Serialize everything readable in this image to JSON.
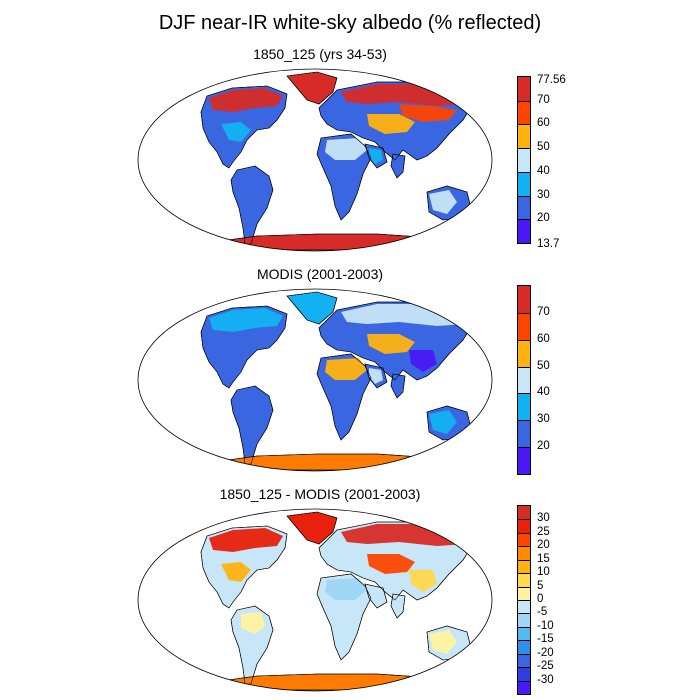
{
  "title": "DJF near-IR white-sky albedo (% reflected)",
  "panels": [
    {
      "title": "1850_125 (yrs 34-53)",
      "scale": "albedo",
      "ends": [
        "77.56",
        "13.7"
      ],
      "labels": [
        "70",
        "60",
        "50",
        "40",
        "30",
        "20"
      ],
      "colors": [
        "#d72b27",
        "#fe4500",
        "#ffb30f",
        "#c7e6f7",
        "#12b2f2",
        "#3a66e2",
        "#4b18f6"
      ],
      "land": "#3a66e2",
      "greenland": "#d72b27",
      "antarctica": "#d72b27",
      "patches": [
        {
          "c": "#d72b27",
          "at": "north-america-north"
        },
        {
          "c": "#d72b27",
          "at": "eurasia-north"
        },
        {
          "c": "#fe4500",
          "at": "siberia"
        },
        {
          "c": "#ffb30f",
          "at": "central-asia"
        },
        {
          "c": "#c7e6f7",
          "at": "sahara"
        },
        {
          "c": "#12b2f2",
          "at": "arabia"
        },
        {
          "c": "#c7e6f7",
          "at": "australia-west"
        },
        {
          "c": "#12b2f2",
          "at": "north-america-central"
        }
      ]
    },
    {
      "title": "MODIS (2001-2003)",
      "scale": "albedo",
      "ends": [
        "",
        ""
      ],
      "labels": [
        "70",
        "60",
        "50",
        "40",
        "30",
        "20"
      ],
      "colors": [
        "#d72b27",
        "#fe4500",
        "#ffb30f",
        "#c7e6f7",
        "#12b2f2",
        "#3a66e2",
        "#4b18f6"
      ],
      "land": "#3a66e2",
      "greenland": "#12b2f2",
      "antarctica": "#fe7a00",
      "patches": [
        {
          "c": "#12b2f2",
          "at": "north-america-north"
        },
        {
          "c": "#c7e6f7",
          "at": "eurasia-north"
        },
        {
          "c": "#ffb30f",
          "at": "central-asia"
        },
        {
          "c": "#ffb30f",
          "at": "sahara"
        },
        {
          "c": "#c7e6f7",
          "at": "arabia"
        },
        {
          "c": "#4b18f6",
          "at": "china"
        },
        {
          "c": "#12b2f2",
          "at": "australia-west"
        }
      ]
    },
    {
      "title": "1850_125 - MODIS (2001-2003)",
      "scale": "difference",
      "ends": [
        "",
        ""
      ],
      "labels": [
        "30",
        "25",
        "20",
        "15",
        "10",
        "5",
        "0",
        "-5",
        "-10",
        "-15",
        "-20",
        "-25",
        "-30"
      ],
      "colors": [
        "#d72b27",
        "#e8200c",
        "#fe4500",
        "#ff8a00",
        "#ffb30f",
        "#ffd84c",
        "#fff3a0",
        "#c7e6f7",
        "#9ed6f5",
        "#56baf0",
        "#2f8ee8",
        "#3a66e2",
        "#2f3ee0",
        "#4b18f6"
      ],
      "land": "#c7e6f7",
      "greenland": "#e8200c",
      "antarctica": "#fe7a00",
      "patches": [
        {
          "c": "#e8200c",
          "at": "north-america-north"
        },
        {
          "c": "#d72b27",
          "at": "eurasia-north"
        },
        {
          "c": "#fe4500",
          "at": "central-asia"
        },
        {
          "c": "#ffd84c",
          "at": "china"
        },
        {
          "c": "#fff3a0",
          "at": "south-america"
        },
        {
          "c": "#fff3a0",
          "at": "australia-west"
        },
        {
          "c": "#9ed6f5",
          "at": "sahara"
        },
        {
          "c": "#ffb30f",
          "at": "north-america-central"
        }
      ]
    }
  ]
}
